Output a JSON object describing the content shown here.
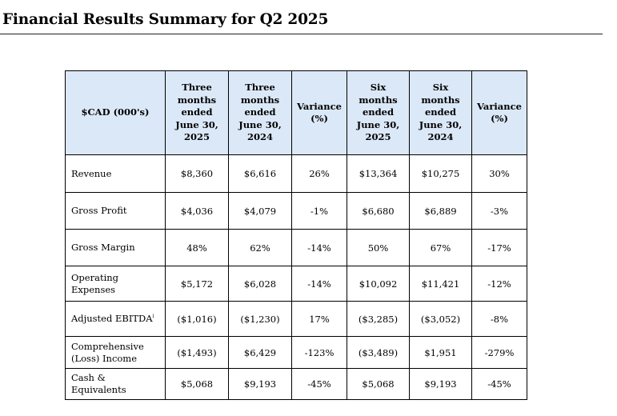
{
  "title": "Financial Results Summary for Q2 2025",
  "table": {
    "headers": [
      "$CAD (000's)",
      "Three months ended June 30, 2025",
      "Three months ended June 30, 2024",
      "Variance (%)",
      "Six months ended June 30, 2025",
      "Six months ended June 30, 2024",
      "Variance (%)"
    ],
    "rows": [
      {
        "label": "Revenue",
        "values": [
          "$8,360",
          "$6,616",
          "26%",
          "$13,364",
          "$10,275",
          "30%"
        ]
      },
      {
        "label": "Gross Profit",
        "values": [
          "$4,036",
          "$4,079",
          "-1%",
          "$6,680",
          "$6,889",
          "-3%"
        ]
      },
      {
        "label": "Gross Margin",
        "values": [
          "48%",
          "62%",
          "-14%",
          "50%",
          "67%",
          "-17%"
        ]
      },
      {
        "label": "Operating Expenses",
        "values": [
          "$5,172",
          "$6,028",
          "-14%",
          "$10,092",
          "$11,421",
          "-12%"
        ]
      },
      {
        "label": "Adjusted EBITDA",
        "footnote": "i",
        "values": [
          "($1,016)",
          "($1,230)",
          "17%",
          "($3,285)",
          "($3,052)",
          "-8%"
        ]
      },
      {
        "label": "Comprehensive (Loss) Income",
        "values": [
          "($1,493)",
          "$6,429",
          "-123%",
          "($3,489)",
          "$1,951",
          "-279%"
        ]
      },
      {
        "label": "Cash & Equivalents",
        "values": [
          "$5,068",
          "$9,193",
          "-45%",
          "$5,068",
          "$9,193",
          "-45%"
        ]
      }
    ]
  }
}
